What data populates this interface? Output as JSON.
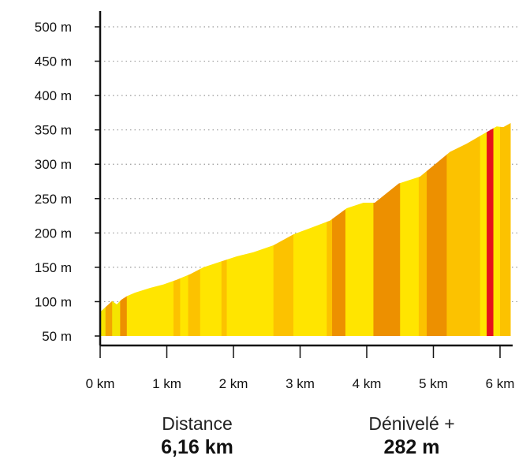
{
  "chart_data": {
    "type": "area",
    "title": "",
    "xlabel": "",
    "ylabel": "",
    "xlim": [
      0,
      6.16
    ],
    "ylim": [
      50,
      500
    ],
    "y_ticks": [
      500,
      450,
      400,
      350,
      300,
      250,
      200,
      150,
      100,
      50
    ],
    "y_tick_labels": [
      "500 m",
      "450 m",
      "400 m",
      "350 m",
      "300 m",
      "250 m",
      "200 m",
      "150 m",
      "100 m",
      "50 m"
    ],
    "x_ticks": [
      0,
      1,
      2,
      3,
      4,
      5,
      6
    ],
    "x_tick_labels": [
      "0 km",
      "1 km",
      "2 km",
      "3 km",
      "4 km",
      "5 km",
      "6 km"
    ],
    "grid": "horizontal-dotted",
    "profile": {
      "x": [
        0,
        0.08,
        0.18,
        0.25,
        0.32,
        0.4,
        0.52,
        0.75,
        0.95,
        1.15,
        1.35,
        1.55,
        1.8,
        2.05,
        2.3,
        2.6,
        2.9,
        3.15,
        3.45,
        3.7,
        3.95,
        4.12,
        4.48,
        4.8,
        5.05,
        5.25,
        5.5,
        5.75,
        5.95,
        6.05,
        6.16
      ],
      "y": [
        85,
        92,
        101,
        96,
        103,
        108,
        113,
        120,
        125,
        132,
        140,
        150,
        158,
        166,
        172,
        182,
        198,
        207,
        218,
        236,
        244,
        244,
        272,
        282,
        302,
        318,
        330,
        344,
        355,
        354,
        360
      ]
    },
    "slope_segments": [
      {
        "x0": 0.0,
        "x1": 0.08,
        "color": "#f5e400"
      },
      {
        "x0": 0.08,
        "x1": 0.18,
        "color": "#f2a500"
      },
      {
        "x0": 0.18,
        "x1": 0.3,
        "color": "#f5e400"
      },
      {
        "x0": 0.3,
        "x1": 0.4,
        "color": "#ed9000"
      },
      {
        "x0": 0.4,
        "x1": 1.1,
        "color": "#ffe500"
      },
      {
        "x0": 1.1,
        "x1": 1.2,
        "color": "#fcc200"
      },
      {
        "x0": 1.2,
        "x1": 1.32,
        "color": "#ffe500"
      },
      {
        "x0": 1.32,
        "x1": 1.5,
        "color": "#fcc200"
      },
      {
        "x0": 1.5,
        "x1": 1.82,
        "color": "#ffe500"
      },
      {
        "x0": 1.82,
        "x1": 1.9,
        "color": "#fcc200"
      },
      {
        "x0": 1.9,
        "x1": 2.6,
        "color": "#ffe500"
      },
      {
        "x0": 2.6,
        "x1": 2.9,
        "color": "#fcc200"
      },
      {
        "x0": 2.9,
        "x1": 3.4,
        "color": "#ffe500"
      },
      {
        "x0": 3.4,
        "x1": 3.48,
        "color": "#fcc200"
      },
      {
        "x0": 3.48,
        "x1": 3.68,
        "color": "#ed9000"
      },
      {
        "x0": 3.68,
        "x1": 4.1,
        "color": "#ffe500"
      },
      {
        "x0": 4.1,
        "x1": 4.5,
        "color": "#ed9000"
      },
      {
        "x0": 4.5,
        "x1": 4.78,
        "color": "#ffe500"
      },
      {
        "x0": 4.78,
        "x1": 4.9,
        "color": "#fcc200"
      },
      {
        "x0": 4.9,
        "x1": 5.2,
        "color": "#ed9000"
      },
      {
        "x0": 5.2,
        "x1": 5.7,
        "color": "#fcc200"
      },
      {
        "x0": 5.7,
        "x1": 5.8,
        "color": "#ffe500"
      },
      {
        "x0": 5.8,
        "x1": 5.9,
        "color": "#e5121b"
      },
      {
        "x0": 5.9,
        "x1": 6.0,
        "color": "#ffe500"
      },
      {
        "x0": 6.0,
        "x1": 6.16,
        "color": "#fcc200"
      }
    ]
  },
  "stats": {
    "distance_label": "Distance",
    "distance_value": "6,16 km",
    "elevation_label": "Dénivelé +",
    "elevation_value": "282 m"
  }
}
